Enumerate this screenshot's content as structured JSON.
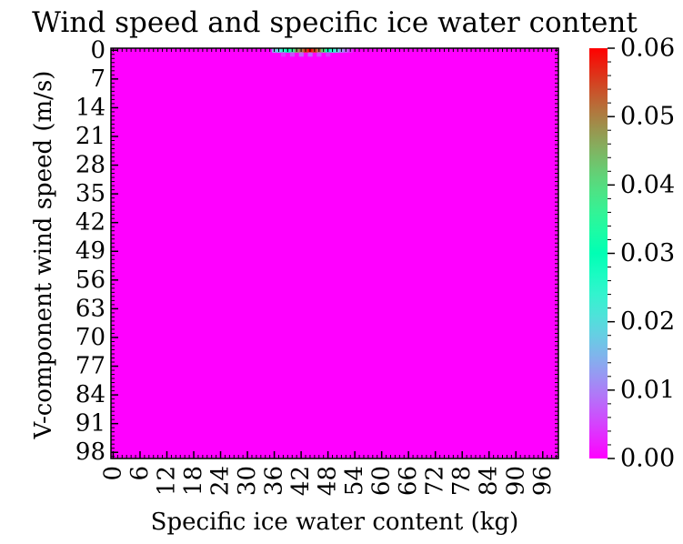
{
  "chart_data": {
    "type": "heatmap",
    "title": "Wind speed and specific ice water content",
    "xlabel": "Specific ice water content (kg)",
    "ylabel": "V-component wind speed (m/s)",
    "x_tick_labels": [
      "0",
      "6",
      "12",
      "18",
      "24",
      "30",
      "36",
      "42",
      "48",
      "54",
      "60",
      "66",
      "72",
      "78",
      "84",
      "90",
      "96"
    ],
    "y_tick_labels": [
      "0",
      "7",
      "14",
      "21",
      "28",
      "35",
      "42",
      "49",
      "56",
      "63",
      "70",
      "77",
      "84",
      "91",
      "98"
    ],
    "x_range": [
      0,
      99
    ],
    "y_range": [
      0,
      99
    ],
    "colorbar": {
      "colormap": "rainbow",
      "range": [
        0.0,
        0.06
      ],
      "tick_labels": [
        "0.00",
        "0.01",
        "0.02",
        "0.03",
        "0.04",
        "0.05",
        "0.06"
      ]
    },
    "background_value": 0.0,
    "hot_cells": [
      {
        "x": 36,
        "y": 0,
        "value": 0.015
      },
      {
        "x": 37,
        "y": 0,
        "value": 0.02
      },
      {
        "x": 38,
        "y": 0,
        "value": 0.025
      },
      {
        "x": 39,
        "y": 0,
        "value": 0.03
      },
      {
        "x": 40,
        "y": 0,
        "value": 0.035
      },
      {
        "x": 41,
        "y": 0,
        "value": 0.045
      },
      {
        "x": 42,
        "y": 0,
        "value": 0.05
      },
      {
        "x": 43,
        "y": 0,
        "value": 0.055
      },
      {
        "x": 44,
        "y": 0,
        "value": 0.06
      },
      {
        "x": 45,
        "y": 0,
        "value": 0.055
      },
      {
        "x": 46,
        "y": 0,
        "value": 0.05
      },
      {
        "x": 47,
        "y": 0,
        "value": 0.04
      },
      {
        "x": 48,
        "y": 0,
        "value": 0.03
      },
      {
        "x": 49,
        "y": 0,
        "value": 0.025
      },
      {
        "x": 50,
        "y": 0,
        "value": 0.02
      },
      {
        "x": 51,
        "y": 0,
        "value": 0.012
      },
      {
        "x": 52,
        "y": 0,
        "value": 0.008
      },
      {
        "x": 53,
        "y": 0,
        "value": 0.004
      },
      {
        "x": 38,
        "y": 1,
        "value": 0.004
      },
      {
        "x": 40,
        "y": 1,
        "value": 0.006
      },
      {
        "x": 42,
        "y": 1,
        "value": 0.008
      },
      {
        "x": 44,
        "y": 1,
        "value": 0.008
      },
      {
        "x": 46,
        "y": 1,
        "value": 0.006
      },
      {
        "x": 48,
        "y": 1,
        "value": 0.004
      }
    ]
  }
}
